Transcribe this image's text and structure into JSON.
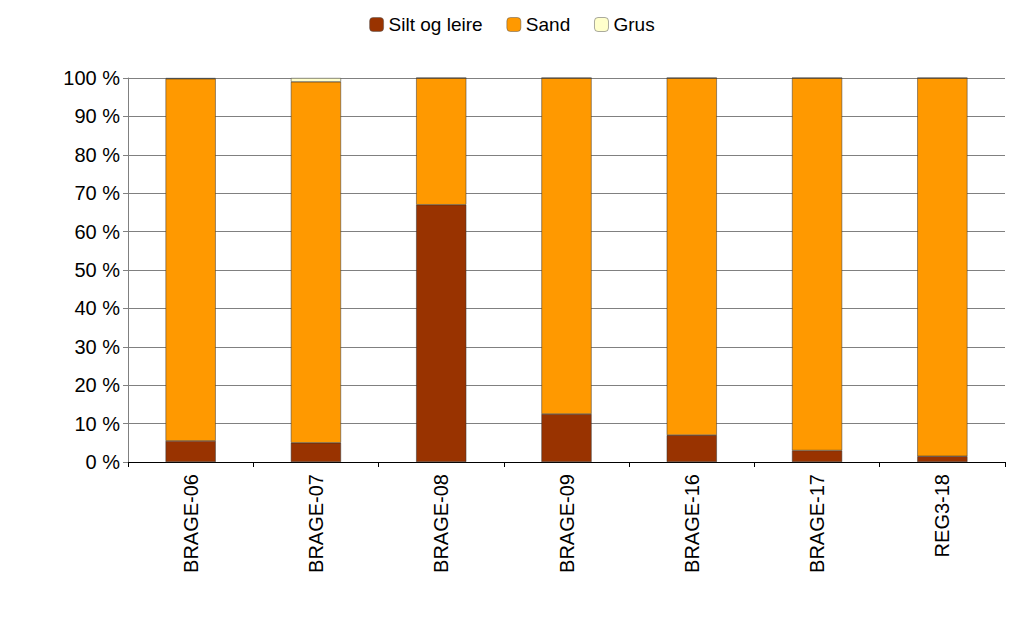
{
  "chart_data": {
    "type": "bar",
    "stacked": true,
    "grid": true,
    "legend": "top",
    "categories": [
      "BRAGE-06",
      "BRAGE-07",
      "BRAGE-08",
      "BRAGE-09",
      "BRAGE-16",
      "BRAGE-17",
      "REG3-18"
    ],
    "series": [
      {
        "name": "Silt og leire",
        "color": "#993300",
        "values": [
          5.5,
          5,
          67,
          12.5,
          7,
          3,
          1.5
        ]
      },
      {
        "name": "Sand",
        "color": "#ff9900",
        "values": [
          94.3,
          94,
          33,
          87.5,
          93,
          97,
          98.5
        ]
      },
      {
        "name": "Grus",
        "color": "#ffffcc",
        "values": [
          0.2,
          1,
          0,
          0,
          0,
          0,
          0
        ]
      }
    ],
    "ylim": [
      0,
      100
    ],
    "yticks": [
      {
        "value": 0,
        "label": "0 %"
      },
      {
        "value": 10,
        "label": "10 %"
      },
      {
        "value": 20,
        "label": "20 %"
      },
      {
        "value": 30,
        "label": "30 %"
      },
      {
        "value": 40,
        "label": "40 %"
      },
      {
        "value": 50,
        "label": "50 %"
      },
      {
        "value": 60,
        "label": "60 %"
      },
      {
        "value": 70,
        "label": "70 %"
      },
      {
        "value": 80,
        "label": "80 %"
      },
      {
        "value": 90,
        "label": "90 %"
      },
      {
        "value": 100,
        "label": "100 %"
      }
    ]
  }
}
